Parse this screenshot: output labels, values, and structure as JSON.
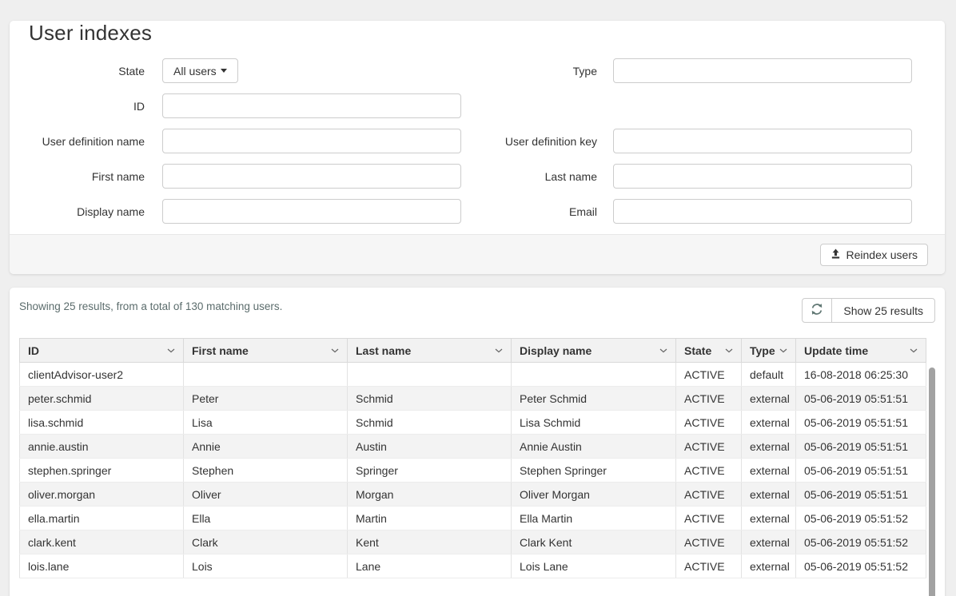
{
  "page": {
    "title": "User indexes"
  },
  "filters": {
    "state": {
      "label": "State",
      "value": "All users"
    },
    "type": {
      "label": "Type",
      "value": ""
    },
    "id": {
      "label": "ID",
      "value": ""
    },
    "user_definition_name": {
      "label": "User definition name",
      "value": ""
    },
    "user_definition_key": {
      "label": "User definition key",
      "value": ""
    },
    "first_name": {
      "label": "First name",
      "value": ""
    },
    "last_name": {
      "label": "Last name",
      "value": ""
    },
    "display_name": {
      "label": "Display name",
      "value": ""
    },
    "email": {
      "label": "Email",
      "value": ""
    }
  },
  "actions": {
    "reindex_label": "Reindex users",
    "reindex_icon": "upload-icon"
  },
  "results": {
    "summary": "Showing 25 results, from a total of 130 matching users.",
    "refresh_icon": "refresh-icon",
    "show_label": "Show 25 results"
  },
  "table": {
    "field_order": [
      "id",
      "first_name",
      "last_name",
      "display_name",
      "state",
      "type",
      "update_time"
    ],
    "columns": [
      {
        "label": "ID"
      },
      {
        "label": "First name"
      },
      {
        "label": "Last name"
      },
      {
        "label": "Display name"
      },
      {
        "label": "State"
      },
      {
        "label": "Type"
      },
      {
        "label": "Update time"
      }
    ],
    "rows": [
      {
        "id": "clientAdvisor-user2",
        "first_name": "",
        "last_name": "",
        "display_name": "",
        "state": "ACTIVE",
        "type": "default",
        "update_time": "16-08-2018 06:25:30"
      },
      {
        "id": "peter.schmid",
        "first_name": "Peter",
        "last_name": "Schmid",
        "display_name": "Peter Schmid",
        "state": "ACTIVE",
        "type": "external",
        "update_time": "05-06-2019 05:51:51"
      },
      {
        "id": "lisa.schmid",
        "first_name": "Lisa",
        "last_name": "Schmid",
        "display_name": "Lisa Schmid",
        "state": "ACTIVE",
        "type": "external",
        "update_time": "05-06-2019 05:51:51"
      },
      {
        "id": "annie.austin",
        "first_name": "Annie",
        "last_name": "Austin",
        "display_name": "Annie Austin",
        "state": "ACTIVE",
        "type": "external",
        "update_time": "05-06-2019 05:51:51"
      },
      {
        "id": "stephen.springer",
        "first_name": "Stephen",
        "last_name": "Springer",
        "display_name": "Stephen Springer",
        "state": "ACTIVE",
        "type": "external",
        "update_time": "05-06-2019 05:51:51"
      },
      {
        "id": "oliver.morgan",
        "first_name": "Oliver",
        "last_name": "Morgan",
        "display_name": "Oliver Morgan",
        "state": "ACTIVE",
        "type": "external",
        "update_time": "05-06-2019 05:51:51"
      },
      {
        "id": "ella.martin",
        "first_name": "Ella",
        "last_name": "Martin",
        "display_name": "Ella Martin",
        "state": "ACTIVE",
        "type": "external",
        "update_time": "05-06-2019 05:51:52"
      },
      {
        "id": "clark.kent",
        "first_name": "Clark",
        "last_name": "Kent",
        "display_name": "Clark Kent",
        "state": "ACTIVE",
        "type": "external",
        "update_time": "05-06-2019 05:51:52"
      },
      {
        "id": "lois.lane",
        "first_name": "Lois",
        "last_name": "Lane",
        "display_name": "Lois Lane",
        "state": "ACTIVE",
        "type": "external",
        "update_time": "05-06-2019 05:51:52"
      }
    ]
  },
  "colors": {
    "page_bg": "#efefef",
    "card_bg": "#ffffff",
    "summary_text": "#5b6c6c",
    "refresh_icon": "#5f7672",
    "table_header_bg": "#f2f2f2",
    "row_stripe": "#f3f3f3",
    "input_border": "#cccccc",
    "scrollbar_thumb": "#a2a2a2"
  }
}
